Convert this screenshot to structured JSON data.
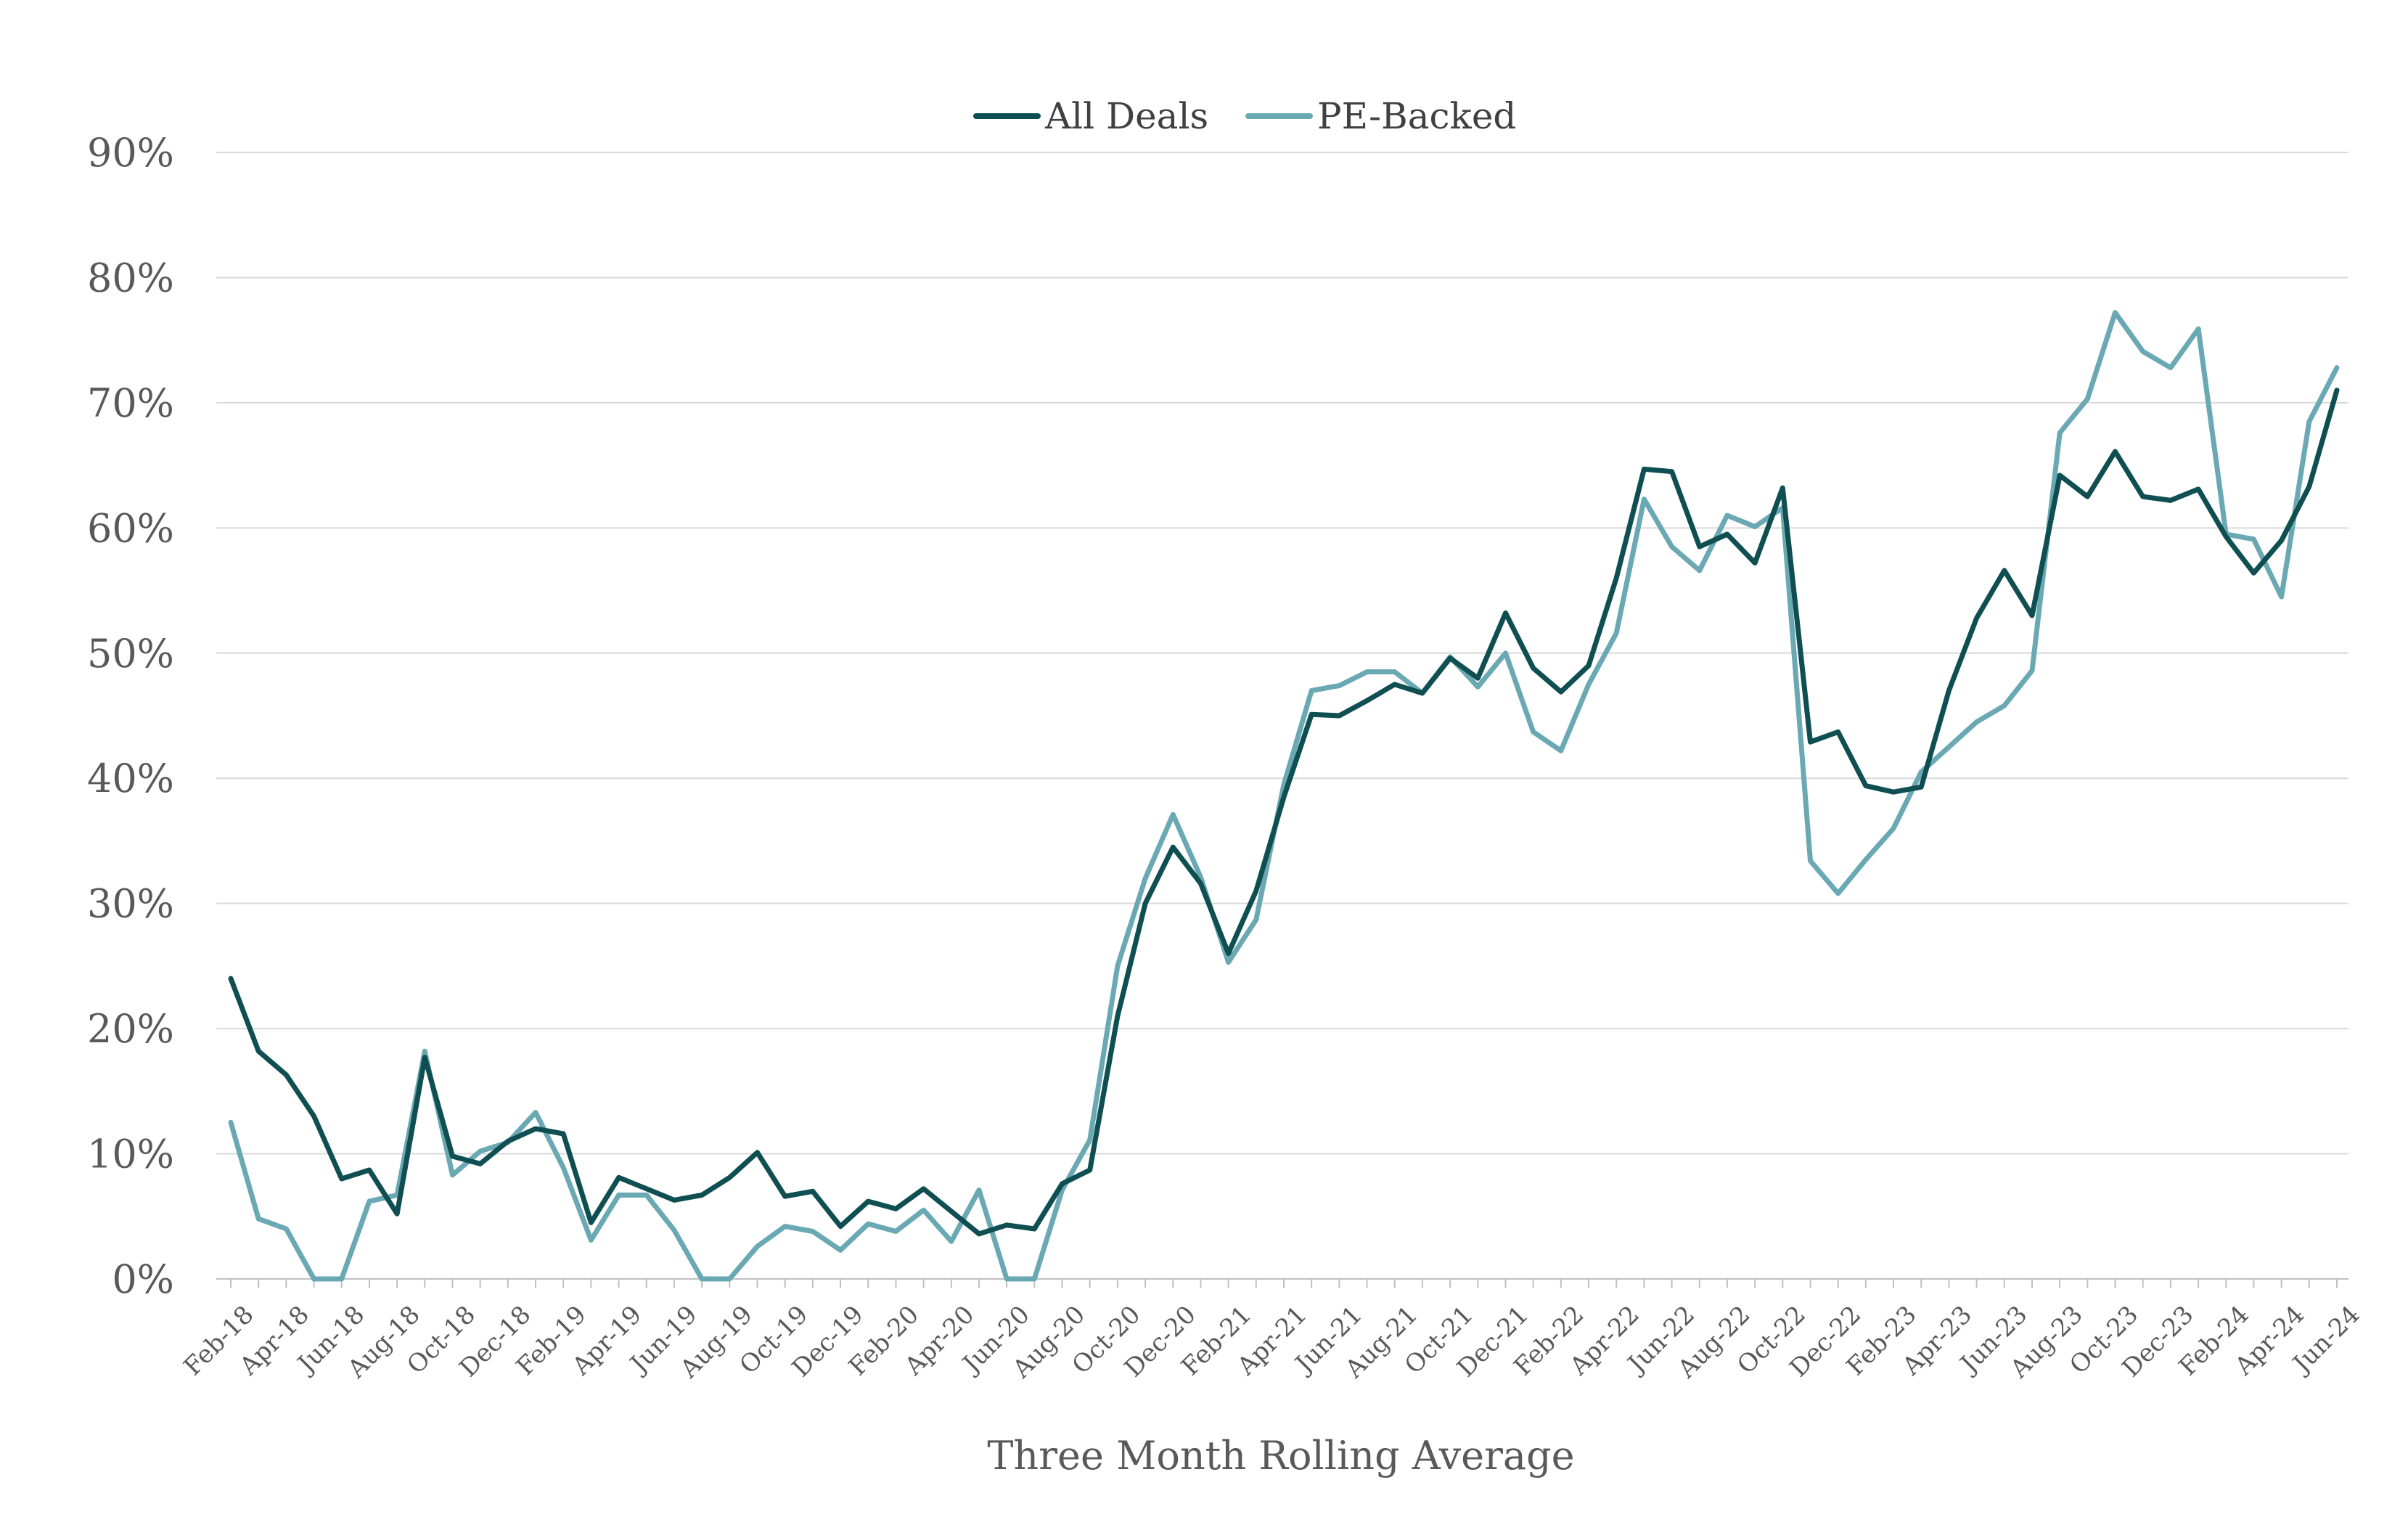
{
  "chart_data": {
    "type": "line",
    "xlabel": "Three Month Rolling Average",
    "ylabel": "",
    "ylim": [
      0,
      90
    ],
    "yticks": [
      "0%",
      "10%",
      "20%",
      "30%",
      "40%",
      "50%",
      "60%",
      "70%",
      "80%",
      "90%"
    ],
    "grid": "horizontal",
    "legend": "top-center",
    "x": [
      "Feb-18",
      "Mar-18",
      "Apr-18",
      "May-18",
      "Jun-18",
      "Jul-18",
      "Aug-18",
      "Sep-18",
      "Oct-18",
      "Nov-18",
      "Dec-18",
      "Jan-19",
      "Feb-19",
      "Mar-19",
      "Apr-19",
      "May-19",
      "Jun-19",
      "Jul-19",
      "Aug-19",
      "Sep-19",
      "Oct-19",
      "Nov-19",
      "Dec-19",
      "Jan-20",
      "Feb-20",
      "Mar-20",
      "Apr-20",
      "May-20",
      "Jun-20",
      "Jul-20",
      "Aug-20",
      "Sep-20",
      "Oct-20",
      "Nov-20",
      "Dec-20",
      "Jan-21",
      "Feb-21",
      "Mar-21",
      "Apr-21",
      "May-21",
      "Jun-21",
      "Jul-21",
      "Aug-21",
      "Sep-21",
      "Oct-21",
      "Nov-21",
      "Dec-21",
      "Jan-22",
      "Feb-22",
      "Mar-22",
      "Apr-22",
      "May-22",
      "Jun-22",
      "Jul-22",
      "Aug-22",
      "Sep-22",
      "Oct-22",
      "Nov-22",
      "Dec-22",
      "Jan-23",
      "Feb-23",
      "Mar-23",
      "Apr-23",
      "May-23",
      "Jun-23",
      "Jul-23",
      "Aug-23",
      "Sep-23",
      "Oct-23",
      "Nov-23",
      "Dec-23",
      "Jan-24",
      "Feb-24",
      "Mar-24",
      "Apr-24",
      "May-24",
      "Jun-24"
    ],
    "x_tick_labels": [
      "Feb-18",
      "Apr-18",
      "Jun-18",
      "Aug-18",
      "Oct-18",
      "Dec-18",
      "Feb-19",
      "Apr-19",
      "Jun-19",
      "Aug-19",
      "Oct-19",
      "Dec-19",
      "Feb-20",
      "Apr-20",
      "Jun-20",
      "Aug-20",
      "Oct-20",
      "Dec-20",
      "Feb-21",
      "Apr-21",
      "Jun-21",
      "Aug-21",
      "Oct-21",
      "Dec-21",
      "Feb-22",
      "Apr-22",
      "Jun-22",
      "Aug-22",
      "Oct-22",
      "Dec-22",
      "Feb-23",
      "Apr-23",
      "Jun-23",
      "Aug-23",
      "Oct-23",
      "Dec-23",
      "Feb-24",
      "Apr-24",
      "Jun-24"
    ],
    "series": [
      {
        "name": "All Deals",
        "color": "#0f4f52",
        "values": [
          24.0,
          18.2,
          16.3,
          13.0,
          8.0,
          8.7,
          5.2,
          17.7,
          9.8,
          9.2,
          11.0,
          12.0,
          11.6,
          4.5,
          8.1,
          7.2,
          6.3,
          6.7,
          8.1,
          10.1,
          6.6,
          7.0,
          4.2,
          6.2,
          5.6,
          7.2,
          5.4,
          3.6,
          4.3,
          4.0,
          7.6,
          8.7,
          21.0,
          30.0,
          34.5,
          31.6,
          26.0,
          31.0,
          38.5,
          45.1,
          45.0,
          46.2,
          47.5,
          46.8,
          49.6,
          48.0,
          53.2,
          48.8,
          46.9,
          49.0,
          56.0,
          64.7,
          64.5,
          58.5,
          59.5,
          57.2,
          63.2,
          42.9,
          43.7,
          39.4,
          38.9,
          39.3,
          47.0,
          52.8,
          56.6,
          53.0,
          64.2,
          62.5,
          66.1,
          62.5,
          62.2,
          63.1,
          59.3,
          56.4,
          59.0,
          63.3,
          71.0
        ]
      },
      {
        "name": "PE-Backed",
        "color": "#6aa9b3",
        "values": [
          12.5,
          4.8,
          4.0,
          0.0,
          0.0,
          6.2,
          6.7,
          18.2,
          8.3,
          10.2,
          10.9,
          13.3,
          8.9,
          3.1,
          6.7,
          6.7,
          3.9,
          0.0,
          0.0,
          2.6,
          4.2,
          3.8,
          2.3,
          4.4,
          3.8,
          5.5,
          3.0,
          7.1,
          0.0,
          0.0,
          7.1,
          11.1,
          25.0,
          32.0,
          37.1,
          32.1,
          25.3,
          28.7,
          39.5,
          47.0,
          47.4,
          48.5,
          48.5,
          46.8,
          49.7,
          47.3,
          50.0,
          43.7,
          42.2,
          47.5,
          51.6,
          62.3,
          58.5,
          56.6,
          61.0,
          60.1,
          61.6,
          33.4,
          30.8,
          33.5,
          36.0,
          40.5,
          42.5,
          44.5,
          45.8,
          48.6,
          67.6,
          70.3,
          77.2,
          74.1,
          72.8,
          75.9,
          59.5,
          59.1,
          54.5,
          68.5,
          72.8
        ]
      }
    ]
  }
}
